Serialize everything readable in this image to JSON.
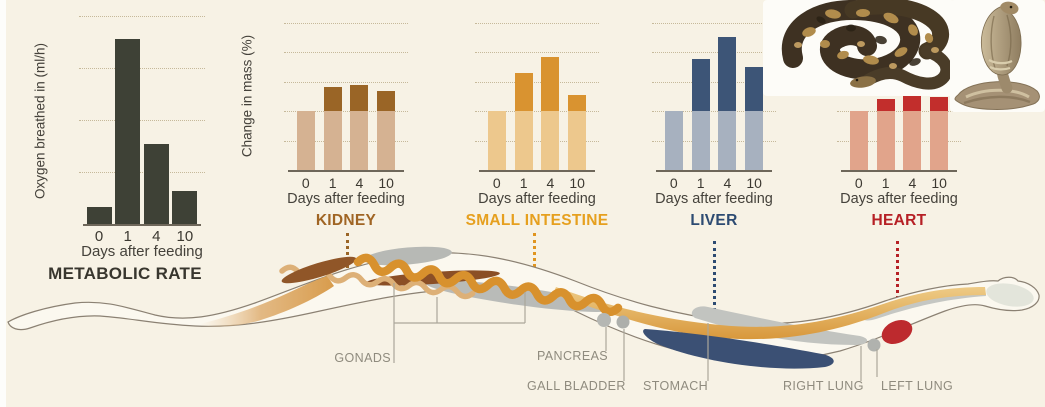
{
  "colors": {
    "background": "#f7f2e5",
    "axis": "#6e675a",
    "anatomy_label": "#8f8b7e",
    "leader_line": "#aba79b",
    "body_outline": "#8b8173"
  },
  "chart_data": [
    {
      "id": "metabolic-rate",
      "type": "bar",
      "title": "METABOLIC RATE",
      "ylabel": "Oxygen breathed in (ml/h)",
      "xlabel": "Days after feeding",
      "categories": [
        "0",
        "1",
        "4",
        "10"
      ],
      "values": [
        20,
        213,
        92,
        38
      ],
      "ylim": [
        0,
        240
      ],
      "yticks": [
        0,
        60,
        120,
        180,
        240
      ],
      "grid": "dotted",
      "legend": "none",
      "colors": {
        "bar": "#3e4136",
        "title": "#38362e"
      }
    },
    {
      "id": "kidney",
      "type": "stacked-bar",
      "title": "KIDNEY",
      "ylabel": "Change in mass (%)",
      "xlabel": "Days after feeding",
      "categories": [
        "0",
        "1",
        "4",
        "10"
      ],
      "values": [
        100,
        141,
        145,
        134
      ],
      "baseline_split": 100,
      "ylim": [
        0,
        250
      ],
      "yticks": [
        0,
        50,
        100,
        150,
        200,
        250
      ],
      "grid": "dotted",
      "legend": "none",
      "colors": {
        "base": "#d5b292",
        "above": "#9a6526",
        "title": "#a06524"
      }
    },
    {
      "id": "small-intestine",
      "type": "stacked-bar",
      "title": "SMALL INTESTINE",
      "xlabel": "Days after feeding",
      "categories": [
        "0",
        "1",
        "4",
        "10"
      ],
      "values": [
        100,
        165,
        193,
        128
      ],
      "baseline_split": 100,
      "ylim": [
        0,
        250
      ],
      "yticks": [
        0,
        50,
        100,
        150,
        200,
        250
      ],
      "grid": "dotted",
      "legend": "none",
      "colors": {
        "base": "#edc88d",
        "above": "#d99330",
        "title": "#e6a01f"
      }
    },
    {
      "id": "liver",
      "type": "stacked-bar",
      "title": "LIVER",
      "xlabel": "Days after feeding",
      "categories": [
        "0",
        "1",
        "4",
        "10"
      ],
      "values": [
        100,
        188,
        227,
        176
      ],
      "baseline_split": 100,
      "ylim": [
        0,
        250
      ],
      "yticks": [
        0,
        50,
        100,
        150,
        200,
        250
      ],
      "grid": "dotted",
      "legend": "none",
      "colors": {
        "base": "#a7b1bf",
        "above": "#3d5577",
        "title": "#2d4b72"
      }
    },
    {
      "id": "heart",
      "type": "stacked-bar",
      "title": "HEART",
      "xlabel": "Days after feeding",
      "categories": [
        "0",
        "1",
        "4",
        "10"
      ],
      "values": [
        100,
        120,
        127,
        125
      ],
      "baseline_split": 100,
      "ylim": [
        0,
        250
      ],
      "yticks": [
        0,
        50,
        100,
        150,
        200,
        250
      ],
      "grid": "dotted",
      "legend": "none",
      "colors": {
        "base": "#e1a48b",
        "above": "#c22e2c",
        "title": "#b62025"
      }
    }
  ],
  "anatomy": {
    "labels": [
      {
        "id": "gonads",
        "text": "GONADS"
      },
      {
        "id": "pancreas",
        "text": "PANCREAS"
      },
      {
        "id": "gall-bladder",
        "text": "GALL BLADDER"
      },
      {
        "id": "stomach",
        "text": "STOMACH"
      },
      {
        "id": "right-lung",
        "text": "RIGHT LUNG"
      },
      {
        "id": "left-lung",
        "text": "LEFT LUNG"
      }
    ]
  },
  "images": [
    {
      "name": "python-photo"
    },
    {
      "name": "cobra-photo"
    }
  ]
}
